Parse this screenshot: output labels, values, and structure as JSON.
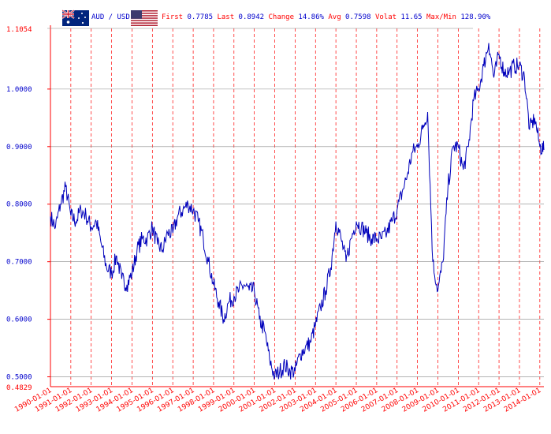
{
  "header": {
    "pair": "AUD / USD",
    "flag_left": "australia-flag",
    "flag_right": "usa-flag",
    "stats": [
      {
        "label": "First",
        "value": "0.7785"
      },
      {
        "label": "Last",
        "value": "0.8942"
      },
      {
        "label": "Change",
        "value": "14.86%"
      },
      {
        "label": "Avg",
        "value": "0.7598"
      },
      {
        "label": "Volat",
        "value": "11.65"
      },
      {
        "label": "Max/Min",
        "value": "128.90%"
      }
    ]
  },
  "colors": {
    "line": "#0000bb",
    "label_red": "#ff0000",
    "value_blue": "#0000cc",
    "grid_v": "#ff0000",
    "grid_h": "#888888",
    "axis": "#ff0000"
  },
  "chart_data": {
    "type": "line",
    "xlabel": "",
    "ylabel": "",
    "ylim": [
      0.4829,
      1.1054
    ],
    "y_max_label": "1.1054",
    "y_min_label": "0.4829",
    "y_ticks": [
      "0.5000",
      "0.6000",
      "0.7000",
      "0.8000",
      "0.9000",
      "1.0000"
    ],
    "x_ticks": [
      "1990-01-01",
      "1991-01-01",
      "1992-01-01",
      "1993-01-01",
      "1994-01-01",
      "1995-01-01",
      "1996-01-01",
      "1997-01-01",
      "1998-01-01",
      "1999-01-01",
      "2000-01-01",
      "2001-01-01",
      "2002-01-01",
      "2003-01-01",
      "2004-01-01",
      "2005-01-01",
      "2006-01-01",
      "2007-01-01",
      "2008-01-01",
      "2009-01-01",
      "2010-01-01",
      "2011-01-01",
      "2012-01-01",
      "2013-01-01",
      "2014-01-01"
    ],
    "grid": true,
    "series": [
      {
        "x": [
          "1990-01-01",
          "1990-04-01",
          "1990-07-01",
          "1990-10-01",
          "1991-01-01",
          "1991-04-01",
          "1991-07-01",
          "1991-10-01",
          "1992-01-01",
          "1992-04-01",
          "1992-07-01",
          "1992-10-01",
          "1993-01-01",
          "1993-04-01",
          "1993-07-01",
          "1993-10-01",
          "1994-01-01",
          "1994-04-01",
          "1994-07-01",
          "1994-10-01",
          "1995-01-01",
          "1995-04-01",
          "1995-07-01",
          "1995-10-01",
          "1996-01-01",
          "1996-04-01",
          "1996-07-01",
          "1996-10-01",
          "1997-01-01",
          "1997-04-01",
          "1997-07-01",
          "1997-10-01",
          "1998-01-01",
          "1998-04-01",
          "1998-07-01",
          "1998-10-01",
          "1999-01-01",
          "1999-04-01",
          "1999-07-01",
          "1999-10-01",
          "2000-01-01",
          "2000-04-01",
          "2000-07-01",
          "2000-10-01",
          "2001-01-01",
          "2001-04-01",
          "2001-07-01",
          "2001-10-01",
          "2002-01-01",
          "2002-04-01",
          "2002-07-01",
          "2002-10-01",
          "2003-01-01",
          "2003-04-01",
          "2003-07-01",
          "2003-10-01",
          "2004-01-01",
          "2004-04-01",
          "2004-07-01",
          "2004-10-01",
          "2005-01-01",
          "2005-04-01",
          "2005-07-01",
          "2005-10-01",
          "2006-01-01",
          "2006-04-01",
          "2006-07-01",
          "2006-10-01",
          "2007-01-01",
          "2007-04-01",
          "2007-07-01",
          "2007-10-01",
          "2008-01-01",
          "2008-04-01",
          "2008-07-01",
          "2008-10-01",
          "2009-01-01",
          "2009-04-01",
          "2009-07-01",
          "2009-10-01",
          "2010-01-01",
          "2010-04-01",
          "2010-07-01",
          "2010-10-01",
          "2011-01-01",
          "2011-04-01",
          "2011-07-01",
          "2011-10-01",
          "2012-01-01",
          "2012-04-01",
          "2012-07-01",
          "2012-10-01",
          "2013-01-01",
          "2013-04-01",
          "2013-07-01",
          "2013-10-01",
          "2014-01-01",
          "2014-03-15"
        ],
        "y": [
          0.7785,
          0.76,
          0.8,
          0.83,
          0.78,
          0.77,
          0.79,
          0.78,
          0.76,
          0.77,
          0.73,
          0.69,
          0.68,
          0.71,
          0.67,
          0.66,
          0.68,
          0.72,
          0.74,
          0.74,
          0.76,
          0.73,
          0.72,
          0.75,
          0.75,
          0.78,
          0.79,
          0.8,
          0.79,
          0.77,
          0.74,
          0.7,
          0.66,
          0.63,
          0.6,
          0.63,
          0.64,
          0.65,
          0.66,
          0.65,
          0.65,
          0.6,
          0.58,
          0.53,
          0.5,
          0.51,
          0.52,
          0.51,
          0.51,
          0.54,
          0.55,
          0.56,
          0.59,
          0.62,
          0.65,
          0.69,
          0.77,
          0.74,
          0.7,
          0.74,
          0.77,
          0.76,
          0.75,
          0.74,
          0.74,
          0.74,
          0.75,
          0.77,
          0.79,
          0.82,
          0.85,
          0.89,
          0.9,
          0.93,
          0.96,
          0.7,
          0.65,
          0.7,
          0.83,
          0.9,
          0.9,
          0.86,
          0.9,
          0.98,
          1.0,
          1.04,
          1.08,
          1.02,
          1.06,
          1.03,
          1.03,
          1.04,
          1.04,
          1.02,
          0.93,
          0.95,
          0.9,
          0.8942
        ]
      }
    ]
  }
}
